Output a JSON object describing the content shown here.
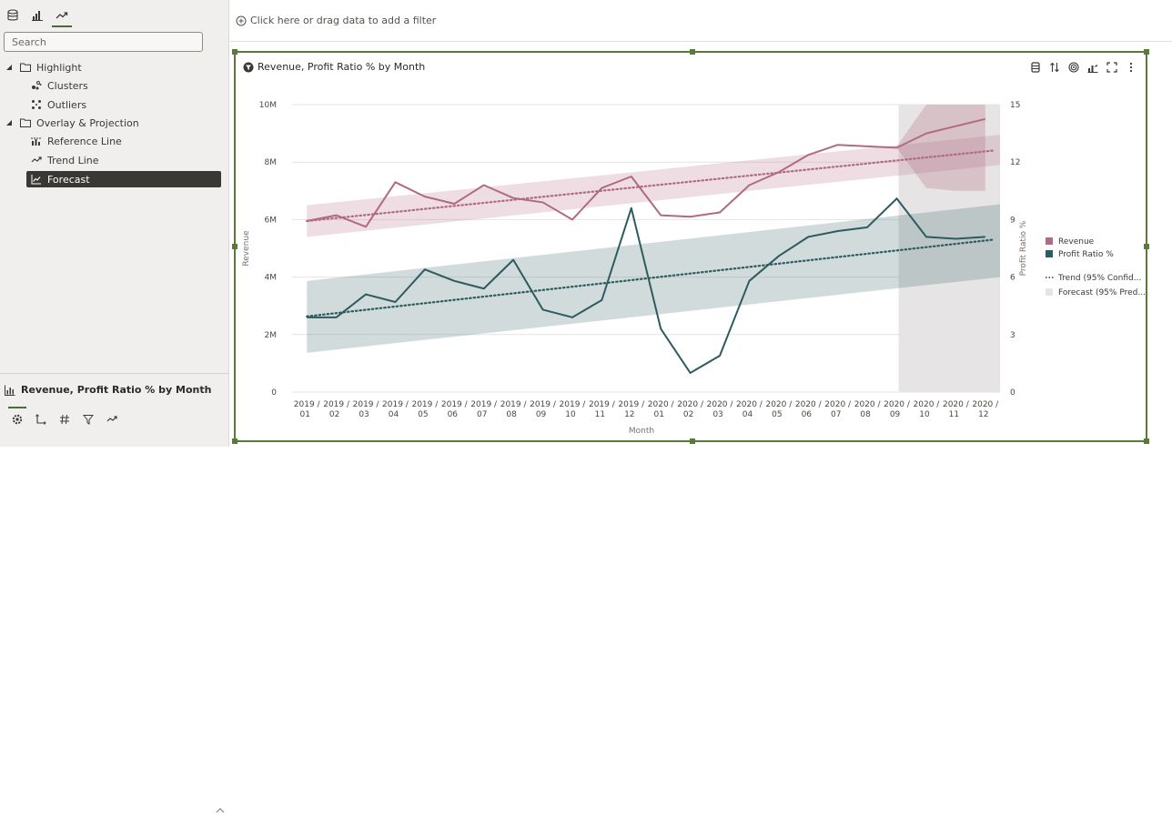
{
  "left_panel": {
    "tabs": [
      {
        "name": "data-tab",
        "icon": "database-icon"
      },
      {
        "name": "visualizations-tab",
        "icon": "chart-icon"
      },
      {
        "name": "analytics-tab",
        "icon": "trend-icon",
        "active": true
      }
    ],
    "search": {
      "placeholder": "Search"
    },
    "tree": [
      {
        "label": "Highlight",
        "type": "folder",
        "icon": "folder-icon"
      },
      {
        "label": "Clusters",
        "type": "item",
        "icon": "clusters-icon"
      },
      {
        "label": "Outliers",
        "type": "item",
        "icon": "outliers-icon"
      },
      {
        "label": "Overlay & Projection",
        "type": "folder",
        "icon": "folder-icon"
      },
      {
        "label": "Reference Line",
        "type": "item",
        "icon": "reference-line-icon"
      },
      {
        "label": "Trend Line",
        "type": "item",
        "icon": "trend-line-icon"
      },
      {
        "label": "Forecast",
        "type": "item",
        "icon": "forecast-icon",
        "selected": true
      }
    ],
    "viz_title": "Revenue, Profit Ratio % by Month",
    "viz_tabs": [
      "settings-icon",
      "axis-icon",
      "number-format-icon",
      "filter-icon",
      "analytics-icon"
    ]
  },
  "filter_bar": {
    "label": "Click here or drag data to add a filter"
  },
  "viz": {
    "title": "Revenue, Profit Ratio % by Month",
    "toolbar": [
      "data-action-icon",
      "sort-icon",
      "target-icon",
      "chart-type-icon",
      "maximize-icon",
      "more-icon"
    ]
  },
  "colors": {
    "revenue": "#b06a82",
    "profit": "#2d5b5f",
    "forecast_band": "#e6e4e4",
    "accent": "#5a7a3c"
  },
  "chart_data": {
    "type": "line",
    "xlabel": "Month",
    "ylabel_left": "Revenue",
    "ylabel_right": "Profit Ratio %",
    "categories": [
      "2019 / 01",
      "2019 / 02",
      "2019 / 03",
      "2019 / 04",
      "2019 / 05",
      "2019 / 06",
      "2019 / 07",
      "2019 / 08",
      "2019 / 09",
      "2019 / 10",
      "2019 / 11",
      "2019 / 12",
      "2020 / 01",
      "2020 / 02",
      "2020 / 03",
      "2020 / 04",
      "2020 / 05",
      "2020 / 06",
      "2020 / 07",
      "2020 / 08",
      "2020 / 09",
      "2020 / 10",
      "2020 / 11",
      "2020 / 12"
    ],
    "left_ticks": [
      "0",
      "2M",
      "4M",
      "6M",
      "8M",
      "10M"
    ],
    "left_ylim": [
      0,
      10000000
    ],
    "right_ticks": [
      "0",
      "3",
      "6",
      "9",
      "12",
      "15"
    ],
    "right_ylim": [
      0,
      15
    ],
    "forecast_start_index": 20,
    "series": [
      {
        "name": "Revenue",
        "axis": "left",
        "values": [
          5950000,
          6150000,
          5750000,
          7300000,
          6800000,
          6550000,
          7200000,
          6750000,
          6600000,
          6000000,
          7100000,
          7500000,
          6150000,
          6100000,
          6250000,
          7200000,
          7650000,
          8250000,
          8600000,
          8550000,
          8500000,
          9000000,
          9250000,
          9500000
        ]
      },
      {
        "name": "Profit Ratio %",
        "axis": "right",
        "values": [
          3.9,
          3.9,
          5.1,
          4.7,
          6.4,
          5.8,
          5.4,
          6.9,
          4.3,
          3.9,
          4.8,
          9.6,
          3.3,
          1.0,
          1.9,
          5.8,
          7.1,
          8.1,
          8.4,
          8.6,
          10.1,
          8.1,
          8.0,
          8.1
        ]
      }
    ],
    "trend": {
      "revenue": {
        "start": 5950000,
        "end": 8400000,
        "band_start": [
          5400000,
          6500000
        ],
        "band_end": [
          7900000,
          8950000
        ]
      },
      "profit": {
        "start": 3.95,
        "end": 7.95,
        "band_start": [
          2.05,
          5.8
        ],
        "band_end": [
          6.0,
          9.8
        ]
      }
    },
    "forecast_band_revenue": {
      "upper": [
        8550000,
        10000000,
        10000000,
        10000000
      ],
      "lower": [
        8500000,
        7100000,
        7000000,
        7000000
      ]
    },
    "legend": [
      {
        "label": "Revenue",
        "kind": "swatch",
        "color": "#b06a82"
      },
      {
        "label": "Profit Ratio %",
        "kind": "swatch",
        "color": "#2d5b5f"
      },
      {
        "label": "Trend (95% Confid...",
        "kind": "dotted"
      },
      {
        "label": "Forecast (95% Pred...",
        "kind": "band"
      }
    ]
  }
}
